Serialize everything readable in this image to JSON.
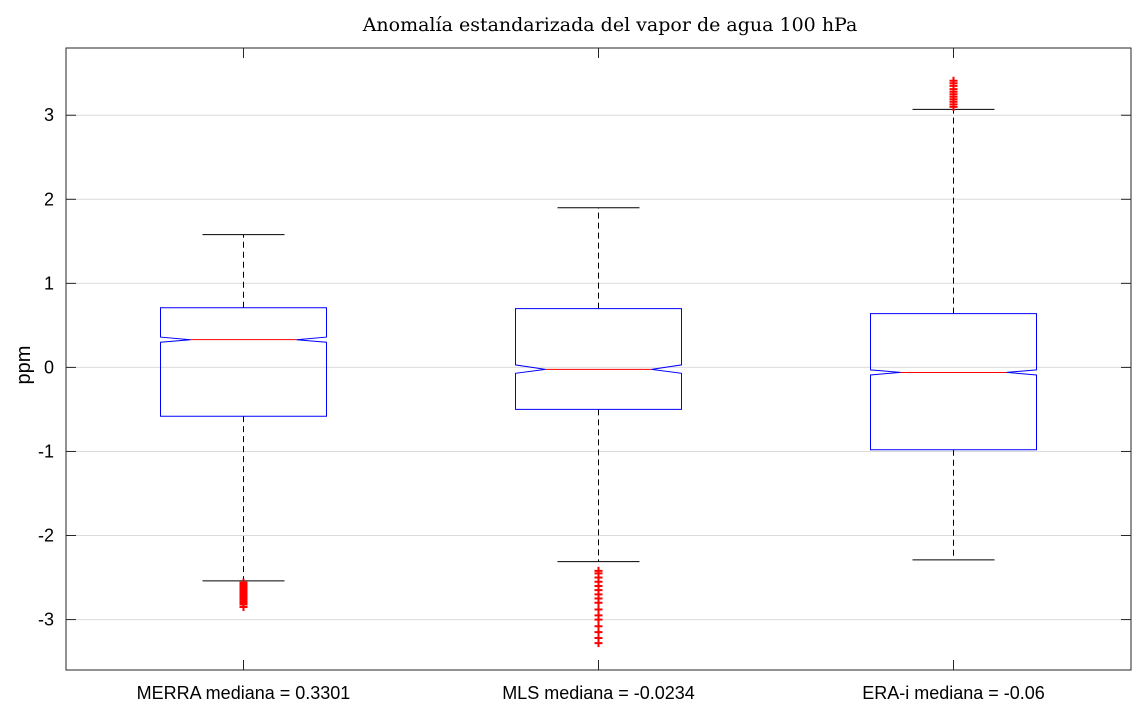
{
  "chart_data": {
    "type": "boxplot",
    "title": "Anomalía estandarizada del vapor de agua 100 hPa",
    "xlabel": "",
    "ylabel": "ppm",
    "ylim": [
      -3.6,
      3.8
    ],
    "yticks": [
      -3,
      -2,
      -1,
      0,
      1,
      2,
      3
    ],
    "ytick_labels": [
      "-3",
      "-2",
      "-1",
      "0",
      "1",
      "2",
      "3"
    ],
    "grid": "horizontal",
    "notched": true,
    "categories": [
      "MERRA mediana = 0.3301",
      "MLS mediana = -0.0234",
      "ERA-i mediana =  -0.06"
    ],
    "boxes": [
      {
        "median": 0.3301,
        "q1": -0.58,
        "q3": 0.71,
        "notch_low": 0.3,
        "notch_high": 0.36,
        "whisker_low": -2.54,
        "whisker_high": 1.58,
        "outliers": [
          -2.56,
          -2.58,
          -2.6,
          -2.62,
          -2.64,
          -2.66,
          -2.68,
          -2.7,
          -2.72,
          -2.74,
          -2.76,
          -2.78,
          -2.8,
          -2.82,
          -2.85
        ]
      },
      {
        "median": -0.0234,
        "q1": -0.5,
        "q3": 0.7,
        "notch_low": -0.07,
        "notch_high": 0.03,
        "whisker_low": -2.31,
        "whisker_high": 1.9,
        "outliers": [
          -2.42,
          -2.45,
          -2.5,
          -2.55,
          -2.6,
          -2.65,
          -2.7,
          -2.75,
          -2.8,
          -2.88,
          -2.95,
          -3.0,
          -3.08,
          -3.15,
          -3.22,
          -3.28
        ]
      },
      {
        "median": -0.06,
        "q1": -0.98,
        "q3": 0.64,
        "notch_low": -0.09,
        "notch_high": -0.03,
        "whisker_low": -2.29,
        "whisker_high": 3.07,
        "outliers": [
          3.1,
          3.13,
          3.16,
          3.19,
          3.22,
          3.25,
          3.28,
          3.31,
          3.35,
          3.38,
          3.41
        ]
      }
    ],
    "colors": {
      "box": "#0000ff",
      "median": "#ff0000",
      "whisker": "#000000",
      "outlier": "#ff0000",
      "grid": "#dcdcdc",
      "axis": "#262626"
    }
  }
}
